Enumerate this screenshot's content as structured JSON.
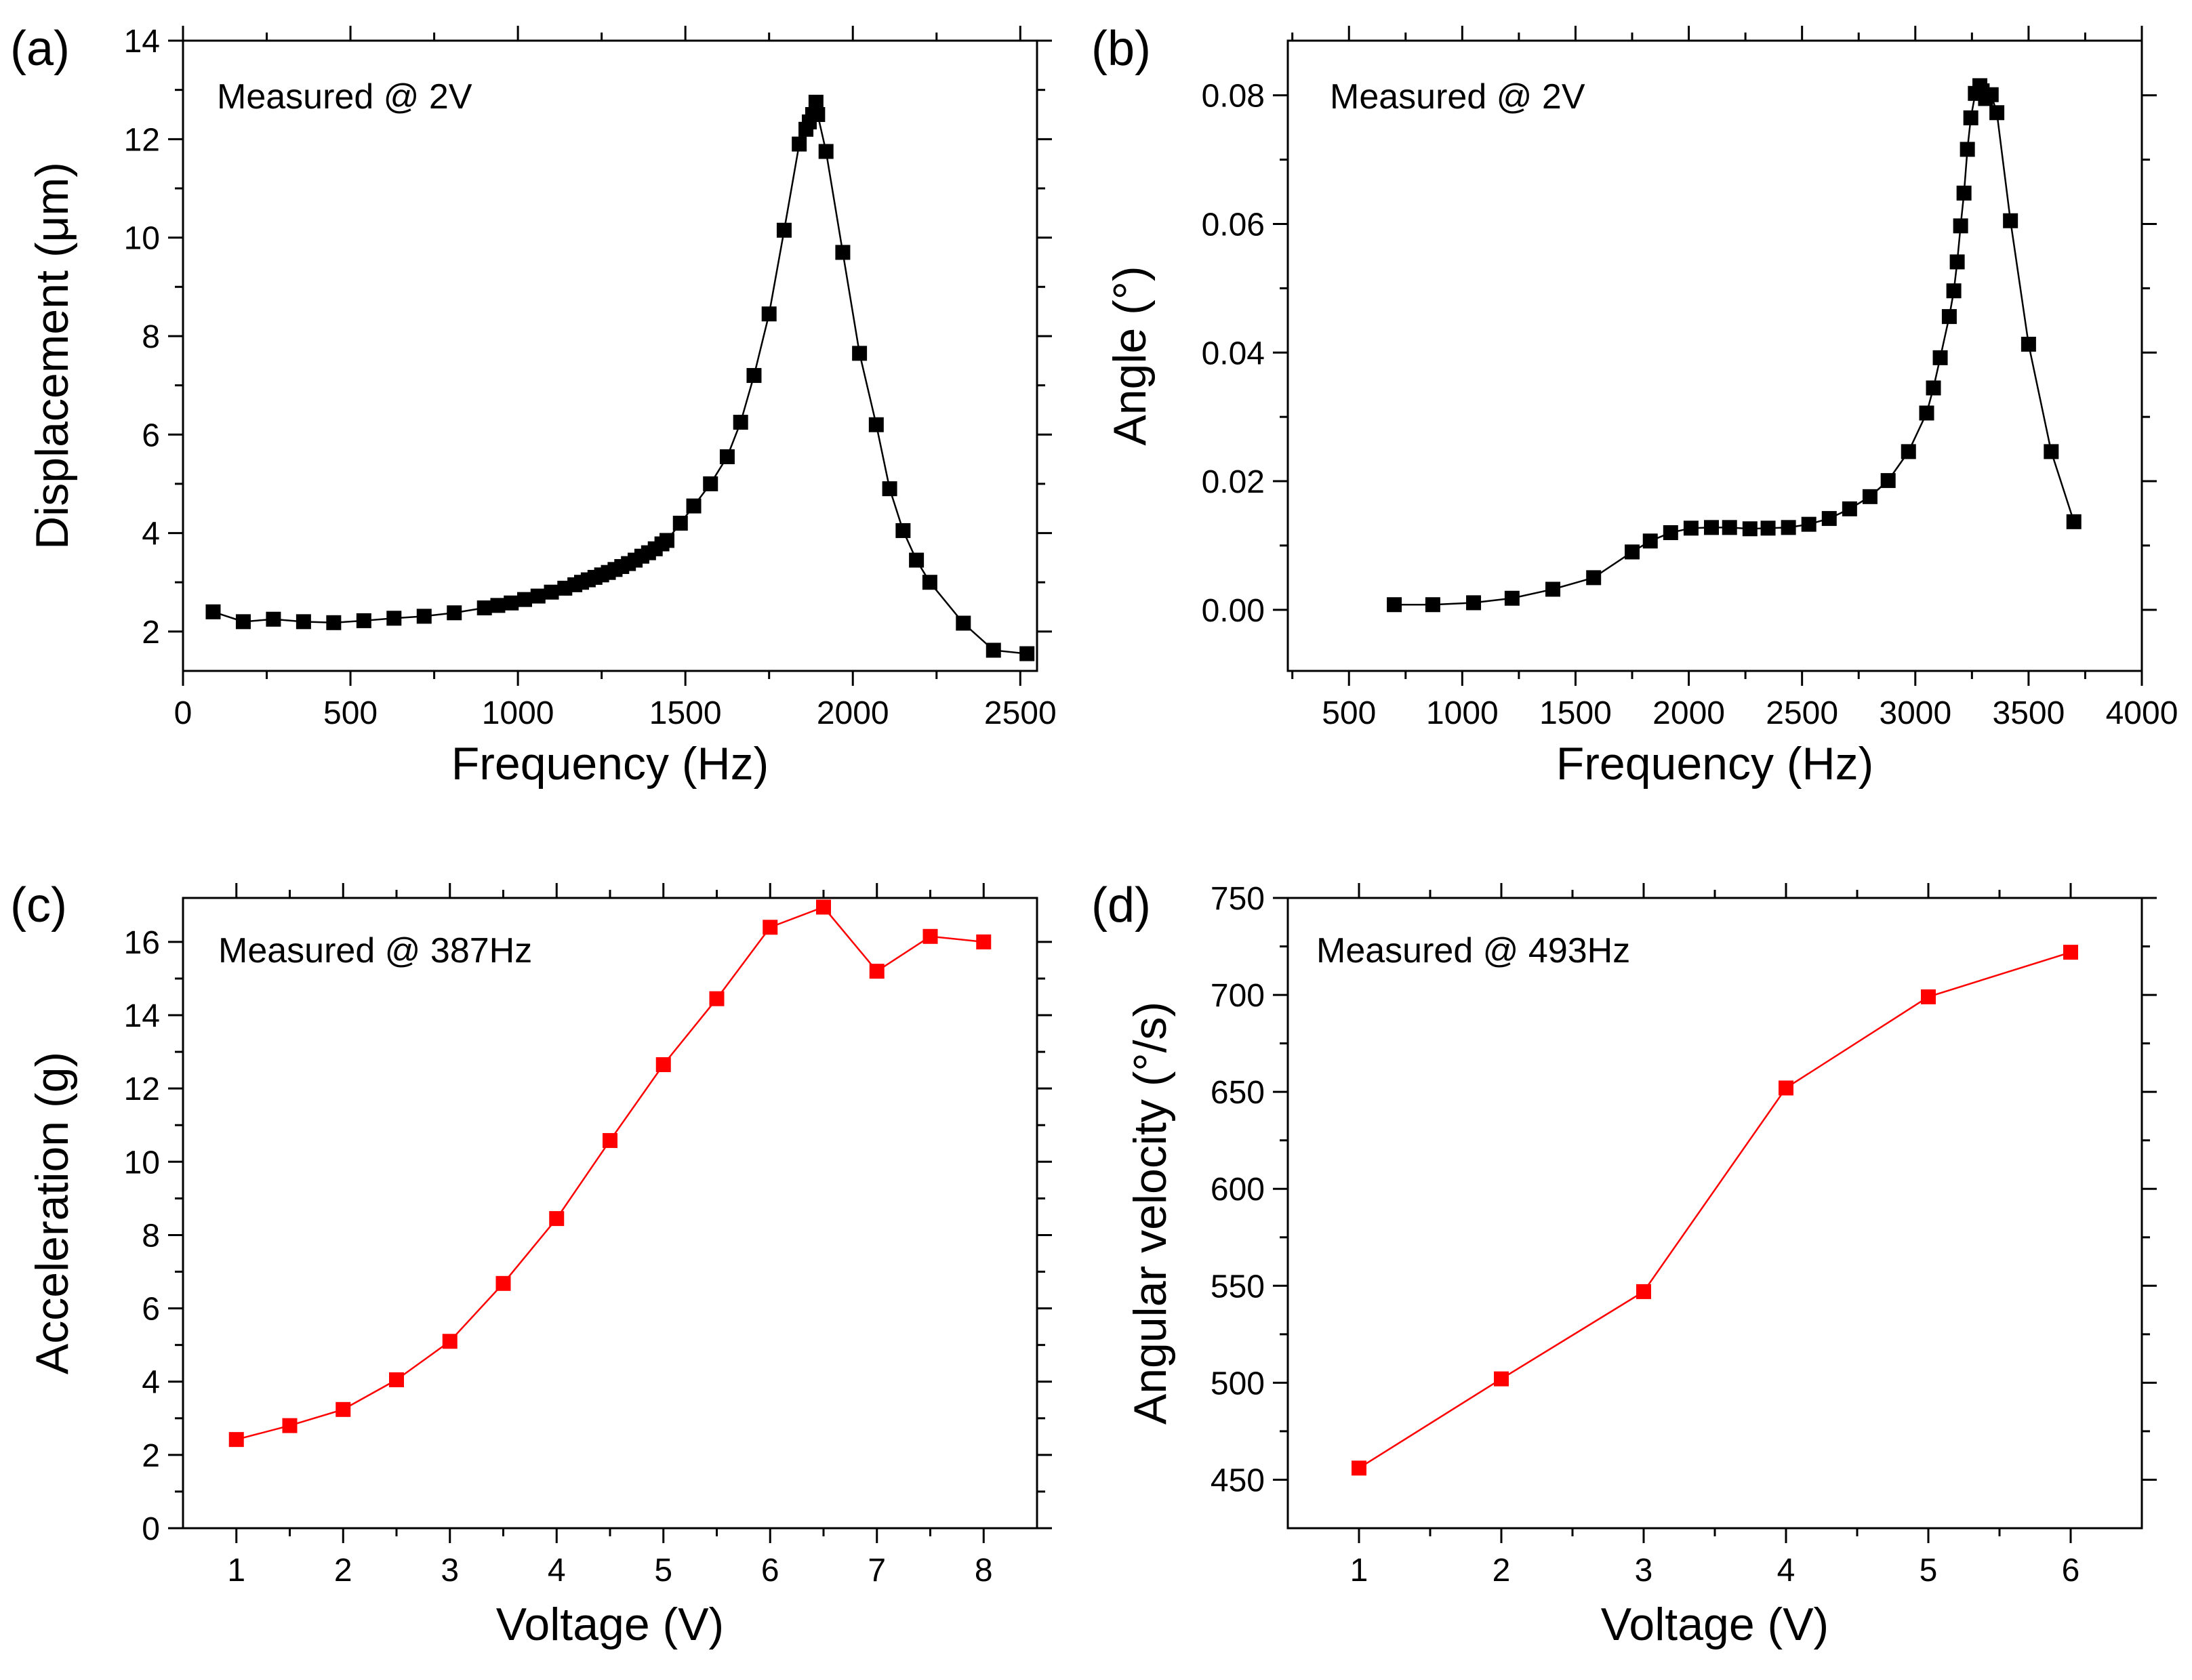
{
  "chart_data": [
    {
      "panel": "(a)",
      "type": "line",
      "annotation": "Measured @ 2V",
      "xlabel": "Frequency (Hz)",
      "ylabel": "Displacement (μm)",
      "xlim": [
        0,
        2550
      ],
      "ylim": [
        1.2,
        14
      ],
      "xticks": [
        0,
        500,
        1000,
        1500,
        2000,
        2500
      ],
      "yticks": [
        2,
        4,
        6,
        8,
        10,
        12,
        14
      ],
      "xticklabels": [
        "0",
        "500",
        "1000",
        "1500",
        "2000",
        "2500"
      ],
      "yticklabels": [
        "2",
        "4",
        "6",
        "8",
        "10",
        "12",
        "14"
      ],
      "marker_color": "#000000",
      "line_color": "#000000",
      "series": [
        {
          "name": "Displacement",
          "x": [
            90,
            180,
            270,
            360,
            450,
            540,
            630,
            720,
            810,
            900,
            940,
            980,
            1020,
            1060,
            1100,
            1140,
            1170,
            1190,
            1210,
            1230,
            1250,
            1270,
            1290,
            1310,
            1330,
            1350,
            1370,
            1390,
            1410,
            1430,
            1445,
            1485,
            1525,
            1575,
            1625,
            1665,
            1705,
            1750,
            1795,
            1840,
            1860,
            1870,
            1880,
            1890,
            1895,
            1920,
            1970,
            2020,
            2070,
            2110,
            2150,
            2190,
            2230,
            2330,
            2420,
            2520
          ],
          "y": [
            2.4,
            2.2,
            2.25,
            2.2,
            2.18,
            2.22,
            2.27,
            2.31,
            2.38,
            2.48,
            2.53,
            2.58,
            2.65,
            2.72,
            2.8,
            2.88,
            2.95,
            3.0,
            3.05,
            3.1,
            3.15,
            3.2,
            3.26,
            3.32,
            3.38,
            3.45,
            3.53,
            3.6,
            3.68,
            3.78,
            3.85,
            4.2,
            4.55,
            5.0,
            5.55,
            6.25,
            7.2,
            8.45,
            10.15,
            11.9,
            12.2,
            12.35,
            12.5,
            12.75,
            12.5,
            11.75,
            9.7,
            7.65,
            6.2,
            4.9,
            4.05,
            3.45,
            3.0,
            2.17,
            1.62,
            1.55
          ]
        }
      ]
    },
    {
      "panel": "(b)",
      "type": "line",
      "annotation": "Measured @ 2V",
      "xlabel": "Frequency (Hz)",
      "ylabel": "Angle (°)",
      "xlim": [
        230,
        4000
      ],
      "ylim": [
        -0.0095,
        0.0885
      ],
      "xticks": [
        500,
        1000,
        1500,
        2000,
        2500,
        3000,
        3500,
        4000
      ],
      "yticks": [
        0.0,
        0.02,
        0.04,
        0.06,
        0.08
      ],
      "xticklabels": [
        "500",
        "1000",
        "1500",
        "2000",
        "2500",
        "3000",
        "3500",
        "4000"
      ],
      "yticklabels": [
        "0.00",
        "0.02",
        "0.04",
        "0.06",
        "0.08"
      ],
      "marker_color": "#000000",
      "line_color": "#000000",
      "series": [
        {
          "name": "Angle",
          "x": [
            700,
            870,
            1050,
            1220,
            1400,
            1580,
            1750,
            1830,
            1920,
            2010,
            2100,
            2180,
            2270,
            2350,
            2440,
            2530,
            2620,
            2710,
            2800,
            2880,
            2970,
            3050,
            3080,
            3110,
            3150,
            3170,
            3185,
            3200,
            3215,
            3230,
            3245,
            3265,
            3285,
            3295,
            3310,
            3335,
            3360,
            3420,
            3500,
            3600,
            3700
          ],
          "y": [
            0.0008,
            0.0008,
            0.0011,
            0.0018,
            0.0032,
            0.005,
            0.009,
            0.0107,
            0.012,
            0.0127,
            0.0128,
            0.0128,
            0.0126,
            0.0127,
            0.0128,
            0.0133,
            0.0142,
            0.0157,
            0.0176,
            0.0201,
            0.0246,
            0.0306,
            0.0345,
            0.0392,
            0.0456,
            0.0496,
            0.0541,
            0.0597,
            0.0648,
            0.0716,
            0.0765,
            0.0803,
            0.0815,
            0.0807,
            0.0795,
            0.0801,
            0.0773,
            0.0605,
            0.0413,
            0.0246,
            0.0137
          ]
        }
      ]
    },
    {
      "panel": "(c)",
      "type": "line",
      "annotation": "Measured @ 387Hz",
      "xlabel": "Voltage (V)",
      "ylabel": "Acceleration (g)",
      "xlim": [
        0.5,
        8.5
      ],
      "ylim": [
        0,
        17.2
      ],
      "xticks": [
        1,
        2,
        3,
        4,
        5,
        6,
        7,
        8
      ],
      "yticks": [
        0,
        2,
        4,
        6,
        8,
        10,
        12,
        14,
        16
      ],
      "xticklabels": [
        "1",
        "2",
        "3",
        "4",
        "5",
        "6",
        "7",
        "8"
      ],
      "yticklabels": [
        "0",
        "2",
        "4",
        "6",
        "8",
        "10",
        "12",
        "14",
        "16"
      ],
      "marker_color": "#ff0000",
      "line_color": "#ff0000",
      "series": [
        {
          "name": "Acceleration",
          "x": [
            1,
            1.5,
            2,
            2.5,
            3,
            3.5,
            4,
            4.5,
            5,
            5.5,
            6,
            6.5,
            7,
            7.5,
            8
          ],
          "y": [
            2.42,
            2.8,
            3.24,
            4.05,
            5.1,
            6.68,
            8.45,
            10.58,
            12.65,
            14.45,
            16.4,
            16.95,
            15.2,
            16.15,
            16.0
          ]
        }
      ]
    },
    {
      "panel": "(d)",
      "type": "line",
      "annotation": "Measured @ 493Hz",
      "xlabel": "Voltage (V)",
      "ylabel": "Angular velocity (°/s)",
      "xlim": [
        0.5,
        6.5
      ],
      "ylim": [
        425,
        750
      ],
      "xticks": [
        1,
        2,
        3,
        4,
        5,
        6
      ],
      "yticks": [
        450,
        500,
        550,
        600,
        650,
        700,
        750
      ],
      "xticklabels": [
        "1",
        "2",
        "3",
        "4",
        "5",
        "6"
      ],
      "yticklabels": [
        "450",
        "500",
        "550",
        "600",
        "650",
        "700",
        "750"
      ],
      "marker_color": "#ff0000",
      "line_color": "#ff0000",
      "series": [
        {
          "name": "Angular velocity",
          "x": [
            1,
            2,
            3,
            4,
            5,
            6
          ],
          "y": [
            456,
            502,
            547,
            652,
            699,
            722
          ]
        }
      ]
    }
  ]
}
